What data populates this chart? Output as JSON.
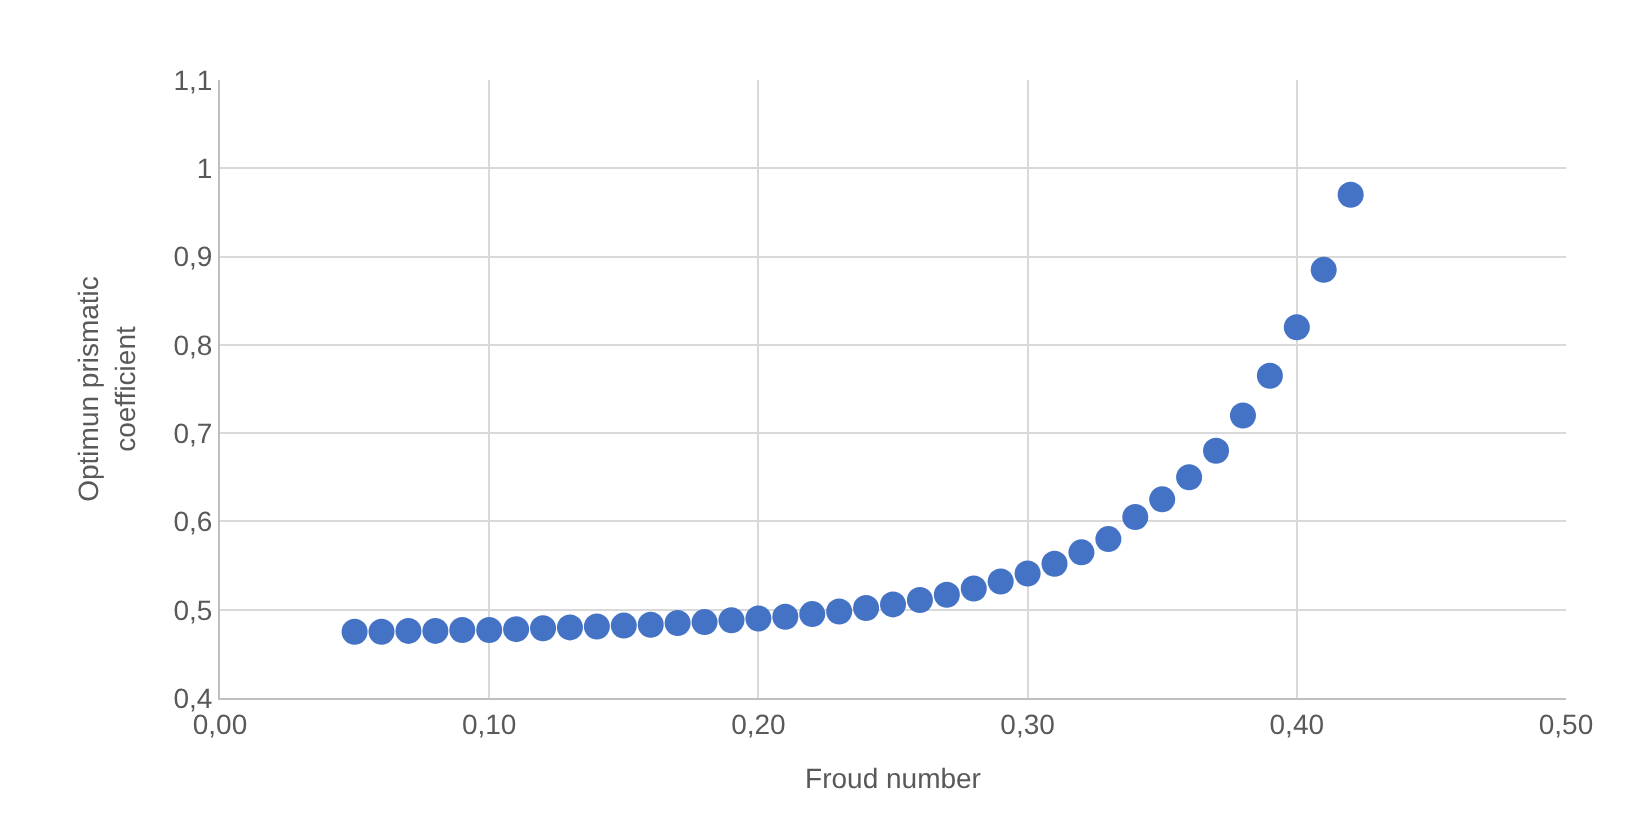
{
  "chart_data": {
    "type": "scatter",
    "xlabel": "Froud number",
    "ylabel": "Optimun prismatic coefficient",
    "x": [
      0.05,
      0.06,
      0.07,
      0.08,
      0.09,
      0.1,
      0.11,
      0.12,
      0.13,
      0.14,
      0.15,
      0.16,
      0.17,
      0.18,
      0.19,
      0.2,
      0.21,
      0.22,
      0.23,
      0.24,
      0.25,
      0.26,
      0.27,
      0.28,
      0.29,
      0.3,
      0.31,
      0.32,
      0.33,
      0.34,
      0.35,
      0.36,
      0.37,
      0.38,
      0.39,
      0.4,
      0.41,
      0.42
    ],
    "series": [
      {
        "color": "#4472c4",
        "values": [
          0.475,
          0.475,
          0.476,
          0.476,
          0.477,
          0.477,
          0.478,
          0.479,
          0.48,
          0.481,
          0.482,
          0.483,
          0.485,
          0.486,
          0.488,
          0.49,
          0.492,
          0.495,
          0.498,
          0.502,
          0.506,
          0.511,
          0.517,
          0.524,
          0.532,
          0.541,
          0.552,
          0.565,
          0.58,
          0.605,
          0.625,
          0.65,
          0.68,
          0.72,
          0.765,
          0.82,
          0.885,
          0.97
        ]
      }
    ],
    "xlim": [
      0,
      0.5
    ],
    "xticks": [
      {
        "value": 0,
        "label": "0,00"
      },
      {
        "value": 0.1,
        "label": "0,10"
      },
      {
        "value": 0.2,
        "label": "0,20"
      },
      {
        "value": 0.3,
        "label": "0,30"
      },
      {
        "value": 0.4,
        "label": "0,40"
      },
      {
        "value": 0.5,
        "label": "0,50"
      }
    ],
    "ylim": [
      0.4,
      1.1
    ],
    "yticks": [
      {
        "value": 0.4,
        "label": "0,4"
      },
      {
        "value": 0.5,
        "label": "0,5"
      },
      {
        "value": 0.6,
        "label": "0,6"
      },
      {
        "value": 0.7,
        "label": "0,7"
      },
      {
        "value": 0.8,
        "label": "0,8"
      },
      {
        "value": 0.9,
        "label": "0,9"
      },
      1,
      {
        "value": 1.1,
        "label": "1,1"
      }
    ],
    "grid": true,
    "marker": "circle",
    "legend": false
  }
}
